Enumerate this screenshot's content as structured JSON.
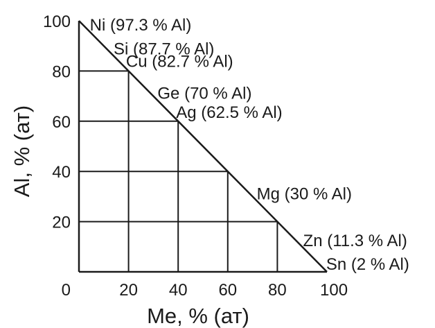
{
  "axes": {
    "xlabel": "Me, % (ат)",
    "ylabel": "Al, % (ат)",
    "x_ticks": [
      "0",
      "20",
      "40",
      "60",
      "80",
      "100"
    ],
    "y_ticks": [
      "20",
      "40",
      "60",
      "80",
      "100"
    ],
    "x_range": [
      0,
      100
    ],
    "y_range": [
      0,
      100
    ]
  },
  "annotations": [
    {
      "text": "Ni (97.3 % Al)",
      "me": 2.7,
      "al": 97.3
    },
    {
      "text": "Si (87.7 % Al)",
      "me": 12.3,
      "al": 87.7
    },
    {
      "text": "Cu (82.7 % Al)",
      "me": 17.3,
      "al": 82.7
    },
    {
      "text": "Ge (70 % Al)",
      "me": 30,
      "al": 70
    },
    {
      "text": "Ag (62.5 % Al)",
      "me": 37.5,
      "al": 62.5
    },
    {
      "text": "Mg (30 % Al)",
      "me": 70,
      "al": 30
    },
    {
      "text": "Zn (11.3 % Al)",
      "me": 88.7,
      "al": 11.3
    },
    {
      "text": "Sn (2 % Al)",
      "me": 98,
      "al": 2
    }
  ],
  "grid": true,
  "colors": {
    "line": "#1a1a1a",
    "background": "#ffffff"
  }
}
